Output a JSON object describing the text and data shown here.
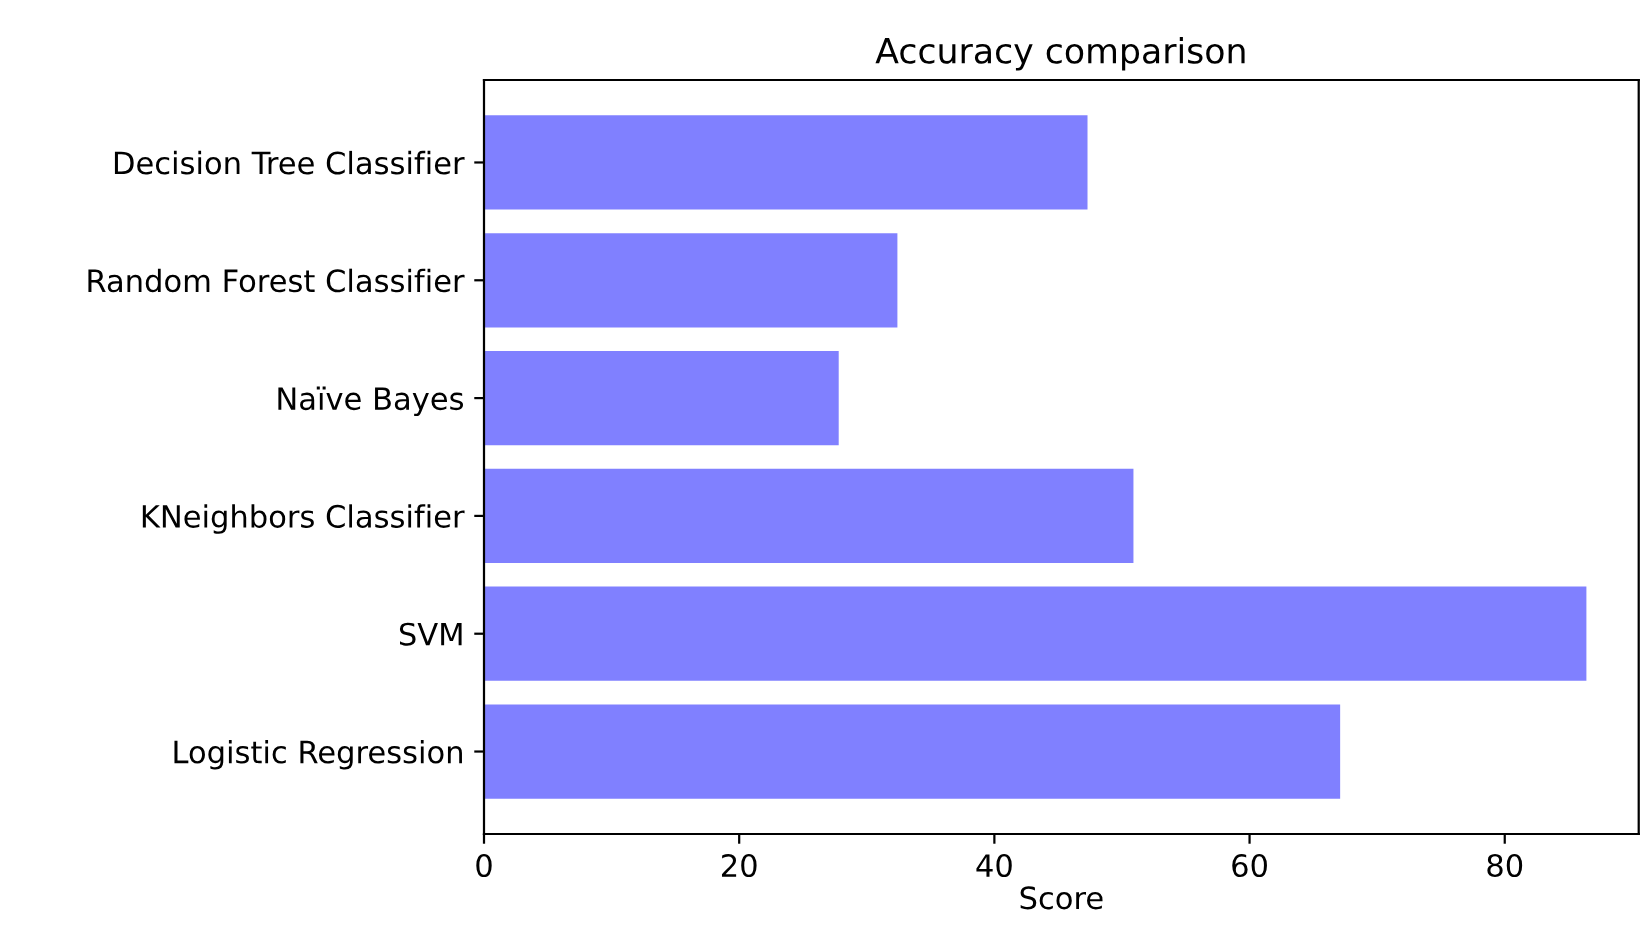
{
  "chart_data": {
    "type": "bar",
    "orientation": "horizontal",
    "title": "Accuracy comparison",
    "xlabel": "Score",
    "categories": [
      "Decision Tree Classifier",
      "Random Forest Classifier",
      "Naïve Bayes",
      "KNeighbors Classifier",
      "SVM",
      "Logistic Regression"
    ],
    "values": [
      47.3,
      32.4,
      27.8,
      50.9,
      86.4,
      67.1
    ],
    "color": "#8080ff",
    "xlim": [
      0,
      90.5
    ],
    "xticks": [
      0,
      20,
      40,
      60,
      80
    ],
    "grid": false
  }
}
